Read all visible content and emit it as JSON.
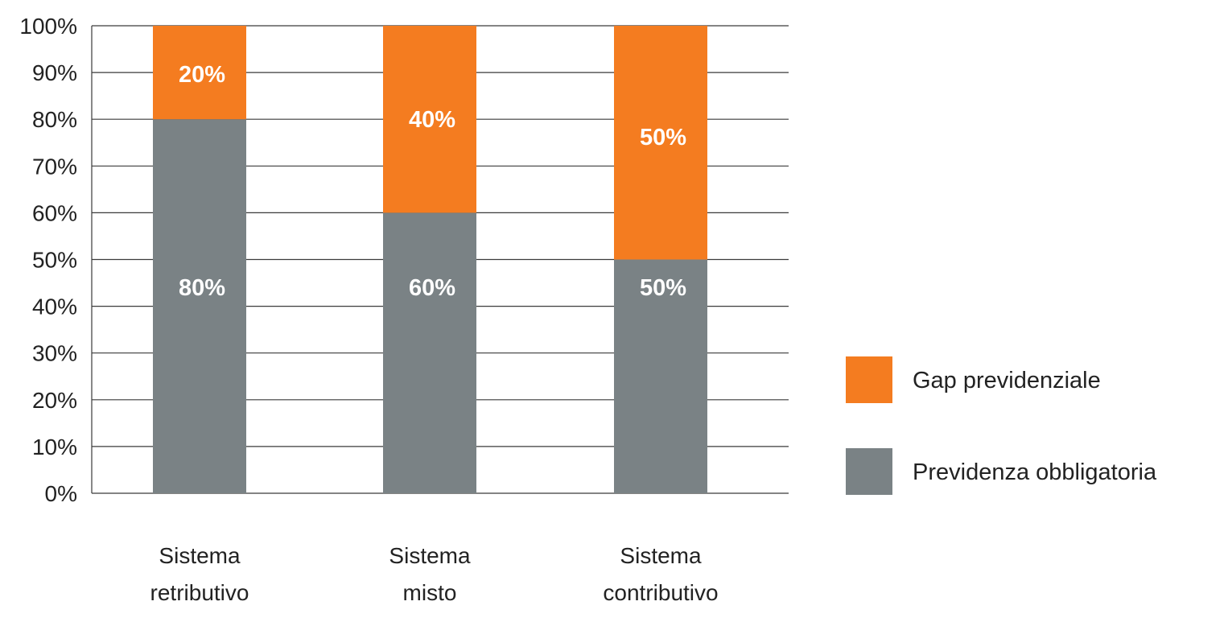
{
  "chart_data": {
    "type": "bar",
    "stacked": true,
    "title": "",
    "xlabel": "",
    "ylabel": "",
    "ylim": [
      0,
      100
    ],
    "yticks": [
      0,
      10,
      20,
      30,
      40,
      50,
      60,
      70,
      80,
      90,
      100
    ],
    "ytick_suffix": "%",
    "grid": true,
    "legend_position": "right",
    "categories": [
      [
        "Sistema",
        "retributivo"
      ],
      [
        "Sistema",
        "misto"
      ],
      [
        "Sistema",
        "contributivo"
      ]
    ],
    "series": [
      {
        "name": "Previdenza obbligatoria",
        "color": "#7a8285",
        "values": [
          80,
          60,
          50
        ],
        "labels": [
          "80%",
          "60%",
          "50%"
        ]
      },
      {
        "name": "Gap previdenziale",
        "color": "#f47c20",
        "values": [
          20,
          40,
          50
        ],
        "labels": [
          "20%",
          "40%",
          "50%"
        ]
      }
    ],
    "legend_order": [
      1,
      0
    ]
  }
}
